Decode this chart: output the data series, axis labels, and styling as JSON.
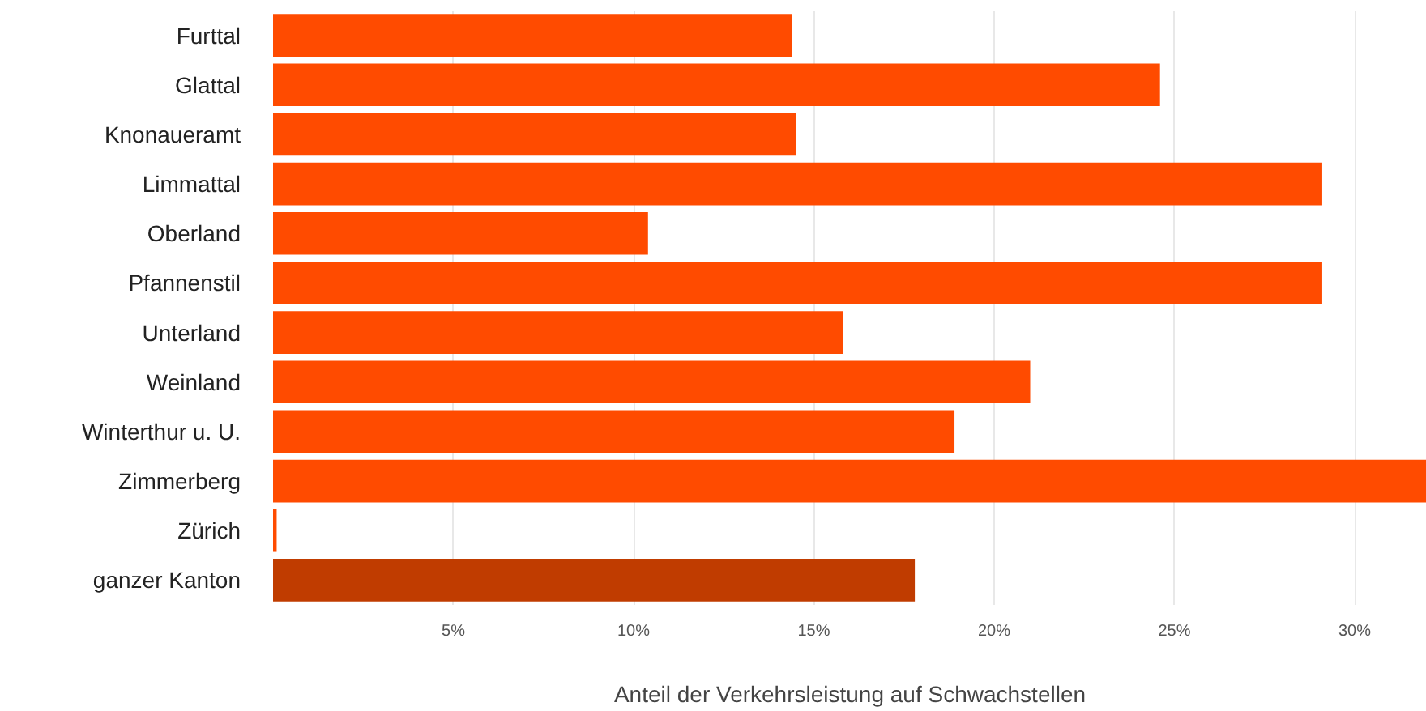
{
  "chart_data": {
    "type": "bar",
    "orientation": "horizontal",
    "xlabel": "Anteil der Verkehrsleistung auf Schwachstellen",
    "categories": [
      "Furttal",
      "Glattal",
      "Knonaueramt",
      "Limmattal",
      "Oberland",
      "Pfannenstil",
      "Unterland",
      "Weinland",
      "Winterthur u. U.",
      "Zimmerberg",
      "Zürich",
      "ganzer Kanton"
    ],
    "values": [
      14.4,
      24.6,
      14.5,
      29.1,
      10.4,
      29.1,
      15.8,
      21.0,
      18.9,
      32.0,
      0.1,
      17.8
    ],
    "colors": [
      "#ff4b00",
      "#ff4b00",
      "#ff4b00",
      "#ff4b00",
      "#ff4b00",
      "#ff4b00",
      "#ff4b00",
      "#ff4b00",
      "#ff4b00",
      "#ff4b00",
      "#ff4b00",
      "#c03c00"
    ],
    "xlim": [
      0,
      32
    ],
    "xticks": [
      {
        "value": 5,
        "label": "5%"
      },
      {
        "value": 10,
        "label": "10%"
      },
      {
        "value": 15,
        "label": "15%"
      },
      {
        "value": 20,
        "label": "20%"
      },
      {
        "value": 25,
        "label": "25%"
      },
      {
        "value": 30,
        "label": "30%"
      }
    ],
    "grid": "x"
  }
}
